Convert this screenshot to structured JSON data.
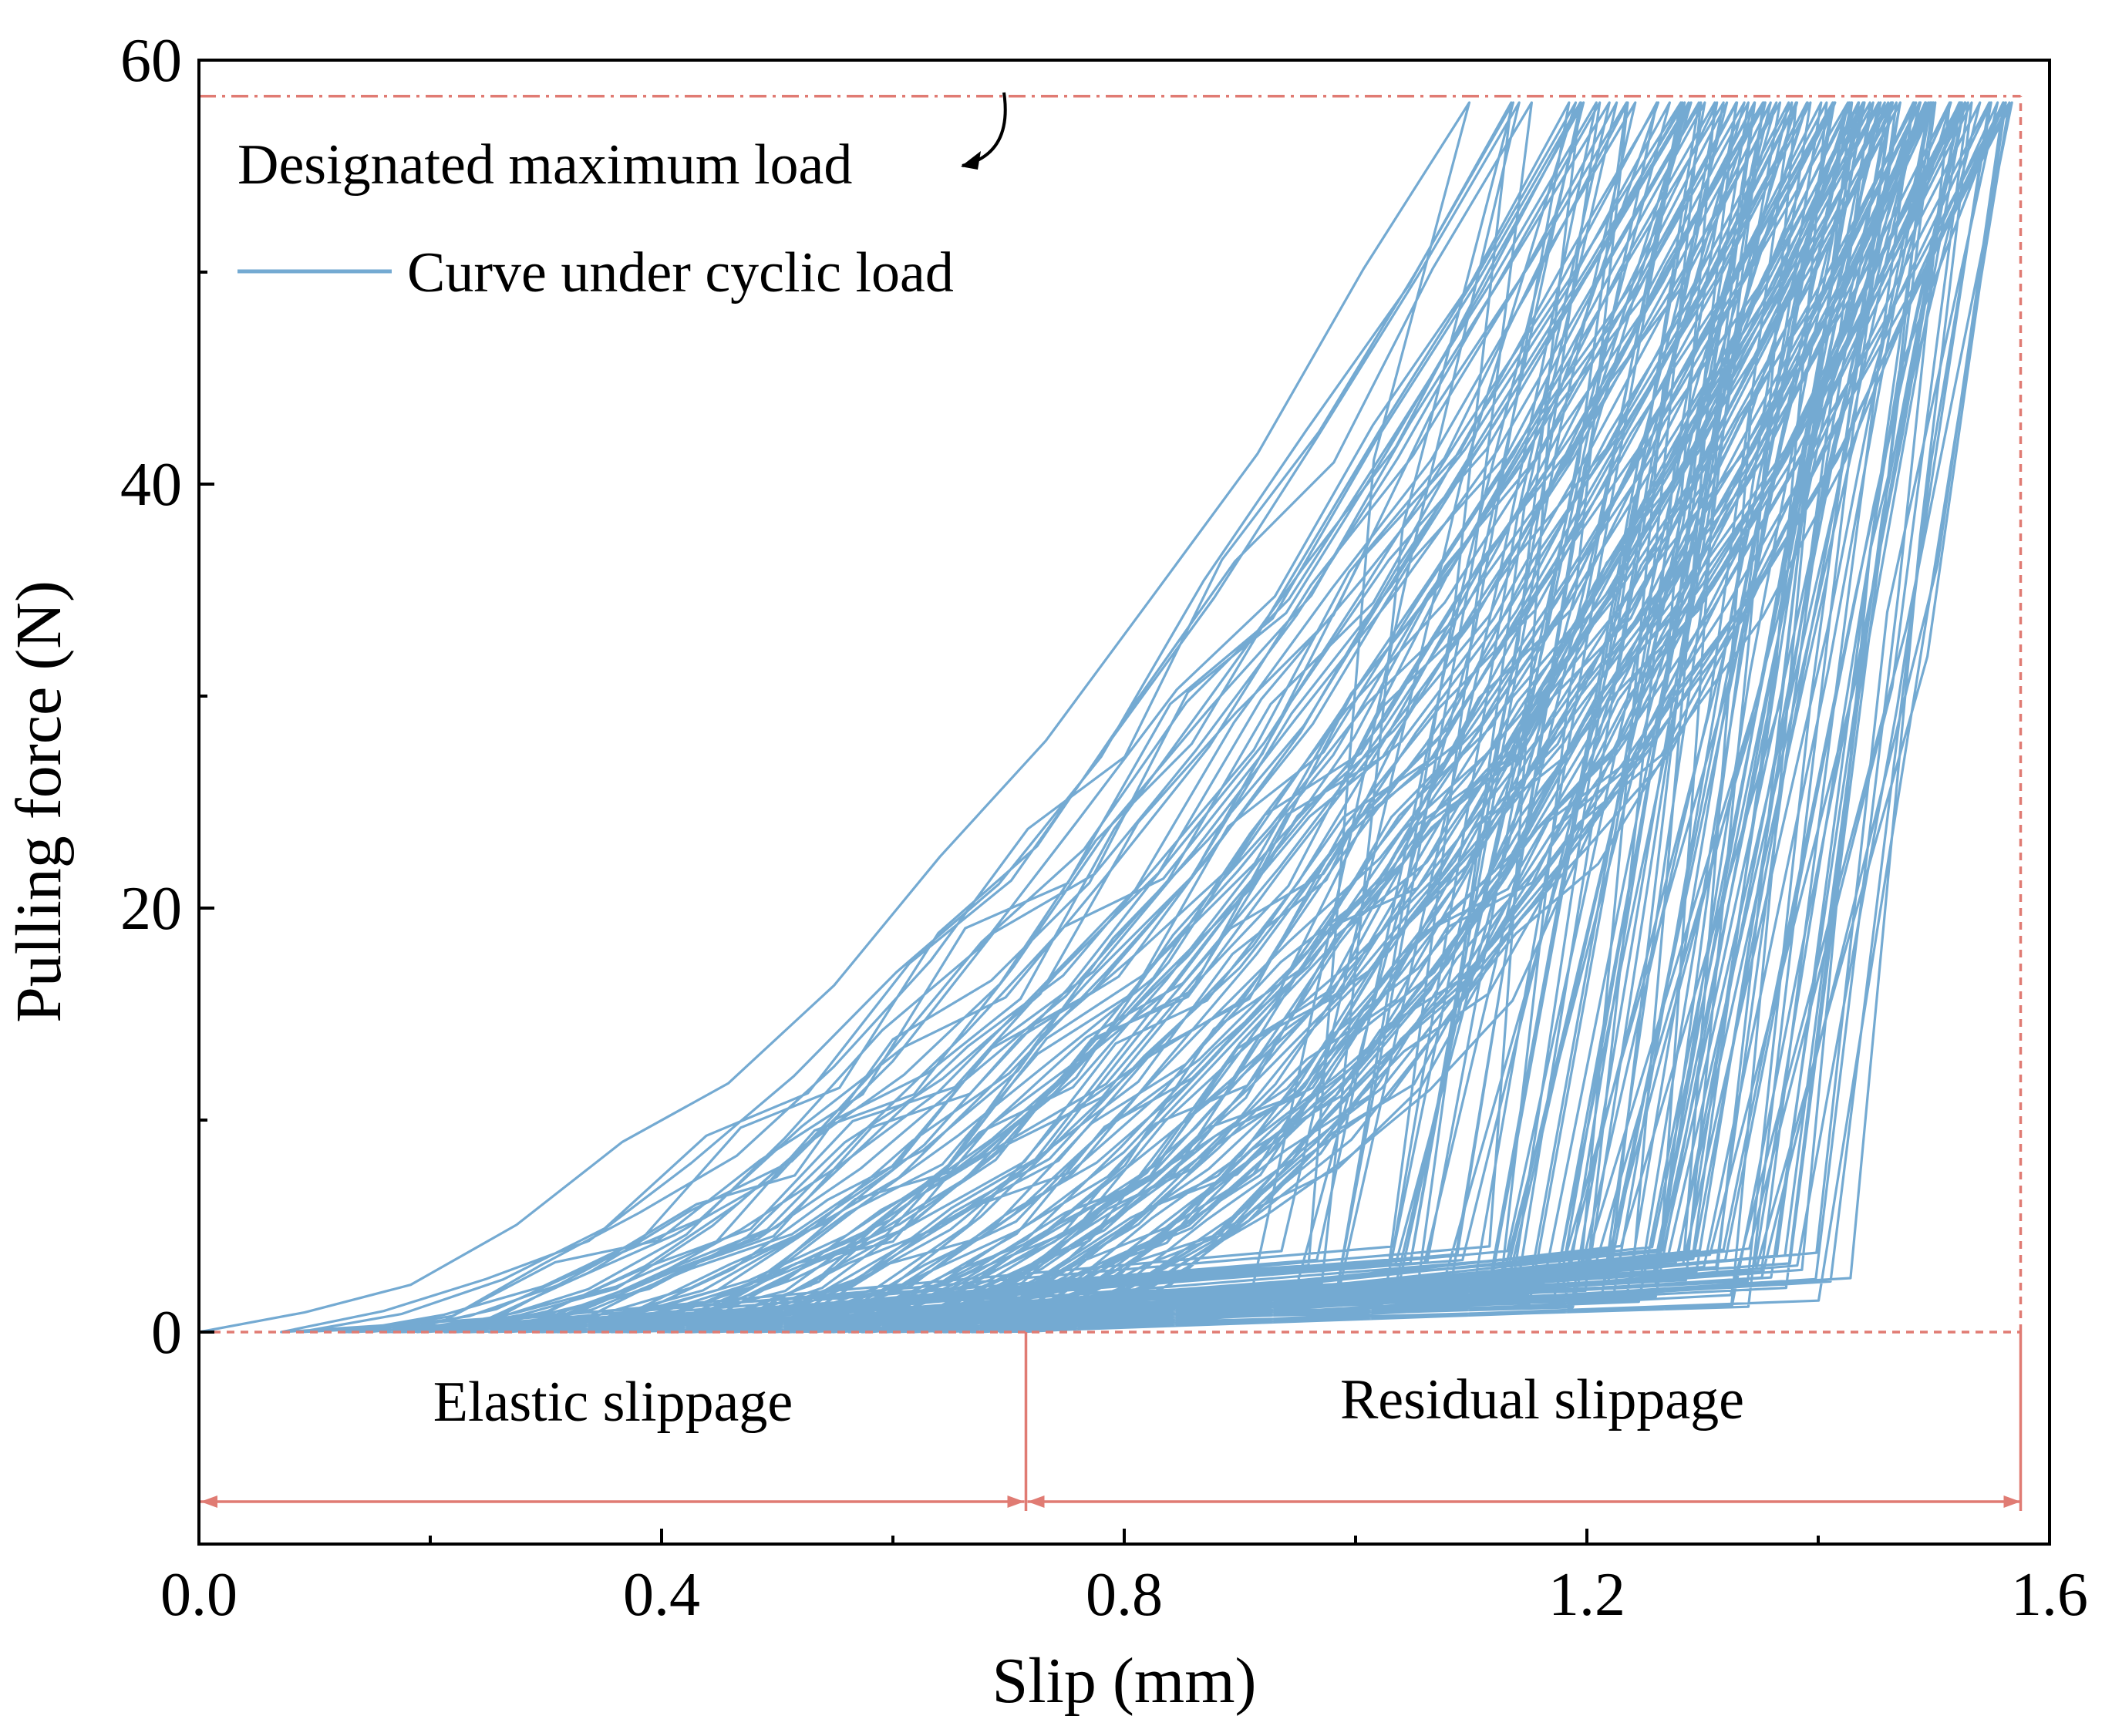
{
  "chart_data": {
    "type": "line",
    "xlabel": "Slip (mm)",
    "ylabel": "Pulling force (N)",
    "xlim": [
      0.0,
      1.6
    ],
    "ylim": [
      -10,
      60
    ],
    "x_ticks": [
      0.0,
      0.4,
      0.8,
      1.2,
      1.6
    ],
    "x_tick_labels": [
      "0.0",
      "0.4",
      "0.8",
      "1.2",
      "1.6"
    ],
    "x_minor_ticks": [
      0.2,
      0.6,
      1.0,
      1.4
    ],
    "y_ticks": [
      0,
      20,
      40,
      60
    ],
    "y_tick_labels": [
      "0",
      "20",
      "40",
      "60"
    ],
    "y_minor_ticks": [
      10,
      30,
      50
    ],
    "grid": false,
    "colors": {
      "curve": "#74aad2",
      "reference": "#e07b73",
      "axis": "#000000"
    },
    "series": [
      {
        "name": "Curve under cyclic load",
        "generation": {
          "cycles": 110,
          "peak_load": 58,
          "loading_start_range": [
            0.0,
            0.72
          ],
          "peak_slip_range": [
            1.06,
            1.58
          ]
        }
      }
    ],
    "reference_lines": {
      "max_load": {
        "label": "Designated maximum load",
        "y": 58.3,
        "x_end": 1.575
      },
      "zero_load": {
        "y": 0,
        "x_end": 1.575
      },
      "right_limit": {
        "x": 1.575,
        "y_range": [
          0,
          58.3
        ]
      }
    },
    "annotations": {
      "elastic": {
        "label": "Elastic slippage",
        "x_from": 0.0,
        "x_to": 0.715,
        "y": -8
      },
      "residual": {
        "label": "Residual slippage",
        "x_from": 0.715,
        "x_to": 1.575,
        "y": -8
      },
      "divider_x": 0.715
    },
    "legend": {
      "location": "top-left",
      "entries": [
        {
          "label": "Designated maximum load",
          "style": "arrow-to-line"
        },
        {
          "label": "Curve under cyclic load",
          "style": "line"
        }
      ]
    }
  }
}
